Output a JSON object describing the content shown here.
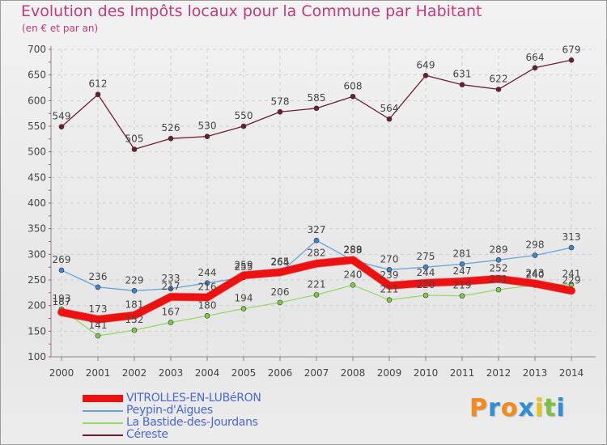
{
  "chart_data": {
    "type": "line",
    "title": "Evolution des Impôts locaux pour la Commune par Habitant",
    "subtitle": "(en € et par an)",
    "xlabel": "",
    "ylabel": "",
    "ylim": [
      100,
      700
    ],
    "yticks": [
      100,
      150,
      200,
      250,
      300,
      350,
      400,
      450,
      500,
      550,
      600,
      650,
      700
    ],
    "categories": [
      "2000",
      "2001",
      "2002",
      "2003",
      "2004",
      "2005",
      "2006",
      "2007",
      "2008",
      "2009",
      "2010",
      "2011",
      "2012",
      "2013",
      "2014"
    ],
    "grid": true,
    "legend_position": "bottom-left",
    "series": [
      {
        "name": "Céreste",
        "color": "#6b1f2e",
        "marker": "#6b1f2e",
        "width": 1.3,
        "values": [
          549,
          612,
          505,
          526,
          530,
          550,
          578,
          585,
          608,
          564,
          649,
          631,
          622,
          664,
          679
        ]
      },
      {
        "name": "Peypin-d'Aigues",
        "color": "#6aa3d8",
        "marker": "#3f86cc",
        "width": 1.3,
        "values": [
          269,
          236,
          229,
          233,
          244,
          255,
          264,
          327,
          288,
          270,
          275,
          281,
          289,
          298,
          313
        ]
      },
      {
        "name": "La Bastide-des-Jourdans",
        "color": "#96d86a",
        "marker": "#7ccc46",
        "width": 1.3,
        "values": [
          193,
          141,
          152,
          167,
          180,
          194,
          206,
          221,
          240,
          211,
          220,
          219,
          231,
          240,
          241
        ]
      },
      {
        "name": "VITROLLES-EN-LUBéRON",
        "color": "#ee1111",
        "marker": "#ee1111",
        "width": 9,
        "values": [
          187,
          173,
          181,
          217,
          216,
          259,
          265,
          282,
          289,
          239,
          244,
          247,
          252,
          243,
          229
        ]
      }
    ],
    "legend_order": [
      "VITROLLES-EN-LUBéRON",
      "Peypin-d'Aigues",
      "La Bastide-des-Jourdans",
      "Céreste"
    ]
  },
  "logo": {
    "letters": [
      "P",
      "r",
      "o",
      "x",
      "i",
      "t",
      "i"
    ],
    "colors": [
      "#f28a1d",
      "#2e8fd6",
      "#f28a1d",
      "#2e8fd6",
      "#e8c31a",
      "#7cc242",
      "#2e8fd6"
    ]
  }
}
